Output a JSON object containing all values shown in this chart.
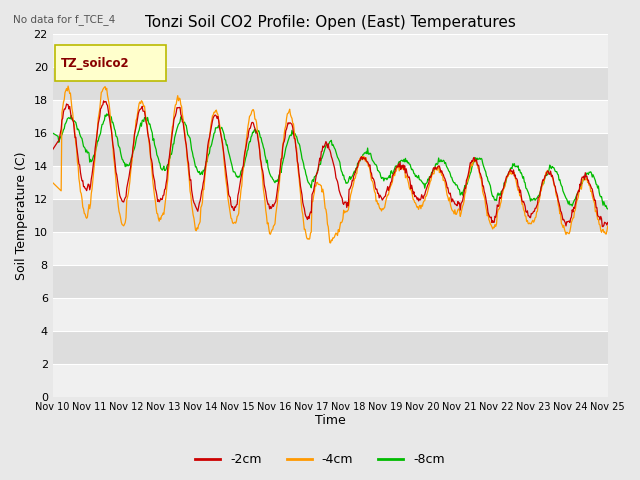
{
  "title": "Tonzi Soil CO2 Profile: Open (East) Temperatures",
  "no_data_text": "No data for f_TCE_4",
  "ylabel": "Soil Temperature (C)",
  "xlabel": "Time",
  "legend_label": "TZ_soilco2",
  "ylim": [
    0,
    22
  ],
  "yticks": [
    0,
    2,
    4,
    6,
    8,
    10,
    12,
    14,
    16,
    18,
    20,
    22
  ],
  "xtick_labels": [
    "Nov 10",
    "Nov 11",
    "Nov 12",
    "Nov 13",
    "Nov 14",
    "Nov 15",
    "Nov 16",
    "Nov 17",
    "Nov 18",
    "Nov 19",
    "Nov 20",
    "Nov 21",
    "Nov 22",
    "Nov 23",
    "Nov 24",
    "Nov 25"
  ],
  "line_colors": {
    "2cm": "#cc0000",
    "4cm": "#ff9900",
    "8cm": "#00bb00"
  },
  "background_color": "#e8e8e8",
  "plot_bg_color_light": "#f0f0f0",
  "plot_bg_color_dark": "#dddddd",
  "grid_color": "#ffffff",
  "title_fontsize": 11,
  "axis_fontsize": 9,
  "tick_fontsize": 8,
  "legend_box_color": "#ffffcc",
  "legend_box_edge": "#bbbb00",
  "legend_text_color": "#880000"
}
